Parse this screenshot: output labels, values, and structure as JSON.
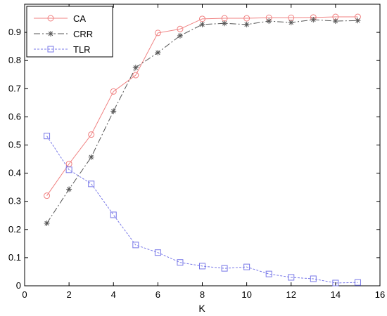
{
  "chart_data": {
    "type": "line",
    "title": "",
    "xlabel": "K",
    "ylabel": "",
    "xlim": [
      0,
      16
    ],
    "ylim": [
      0,
      1
    ],
    "xticks": [
      0,
      2,
      4,
      6,
      8,
      10,
      12,
      14,
      16
    ],
    "yticks": [
      0,
      0.1,
      0.2,
      0.3,
      0.4,
      0.5,
      0.6,
      0.7,
      0.8,
      0.9
    ],
    "x": [
      1,
      2,
      3,
      4,
      5,
      6,
      7,
      8,
      9,
      10,
      11,
      12,
      13,
      14,
      15
    ],
    "grid": false,
    "legend_position": "top-left",
    "series": [
      {
        "name": "CA",
        "color": "#f08080",
        "line_style": "solid",
        "marker": "circle",
        "values": [
          0.32,
          0.433,
          0.537,
          0.69,
          0.748,
          0.898,
          0.912,
          0.948,
          0.95,
          0.95,
          0.952,
          0.952,
          0.953,
          0.955,
          0.955
        ]
      },
      {
        "name": "CRR",
        "color": "#555555",
        "line_style": "dash-dot",
        "marker": "asterisk",
        "values": [
          0.222,
          0.343,
          0.457,
          0.62,
          0.775,
          0.828,
          0.888,
          0.928,
          0.932,
          0.928,
          0.94,
          0.935,
          0.945,
          0.94,
          0.942
        ]
      },
      {
        "name": "TLR",
        "color": "#7878e8",
        "line_style": "dotted",
        "marker": "square",
        "values": [
          0.532,
          0.412,
          0.362,
          0.252,
          0.145,
          0.118,
          0.083,
          0.07,
          0.062,
          0.067,
          0.042,
          0.03,
          0.025,
          0.01,
          0.012
        ]
      }
    ]
  }
}
